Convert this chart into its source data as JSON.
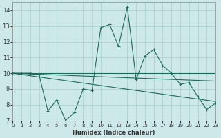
{
  "xlabel": "Humidex (Indice chaleur)",
  "bg_color": "#cde8e8",
  "grid_color": "#a8cccc",
  "line_color": "#1a6b5a",
  "xlim": [
    0,
    23
  ],
  "ylim": [
    7,
    14.5
  ],
  "yticks": [
    7,
    8,
    9,
    10,
    11,
    12,
    13,
    14
  ],
  "xticks": [
    0,
    1,
    2,
    3,
    4,
    5,
    6,
    7,
    8,
    9,
    10,
    11,
    12,
    13,
    14,
    15,
    16,
    17,
    18,
    19,
    20,
    21,
    22,
    23
  ],
  "line1_x": [
    0,
    1,
    2,
    3,
    4,
    5,
    6,
    7,
    8,
    9,
    10,
    11,
    12,
    13,
    14,
    15,
    16,
    17,
    18,
    19,
    20,
    21,
    22,
    23
  ],
  "line1_y": [
    10.0,
    10.0,
    10.0,
    9.9,
    7.6,
    8.3,
    7.0,
    7.5,
    9.0,
    8.9,
    12.9,
    13.1,
    11.7,
    14.2,
    9.6,
    11.1,
    11.5,
    10.5,
    10.0,
    9.3,
    9.4,
    8.5,
    7.7,
    8.1
  ],
  "line2_x": [
    0,
    23
  ],
  "line2_y": [
    10.0,
    10.0
  ],
  "line3_x": [
    0,
    23
  ],
  "line3_y": [
    10.0,
    9.5
  ],
  "line4_x": [
    0,
    23
  ],
  "line4_y": [
    10.0,
    8.2
  ]
}
